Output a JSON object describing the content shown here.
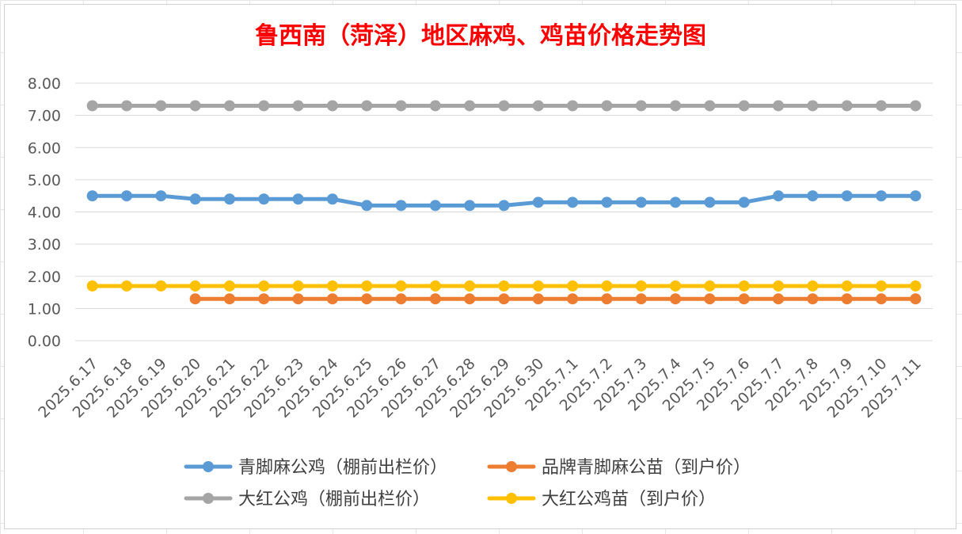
{
  "chart_data": {
    "type": "line",
    "title": "鲁西南（菏泽）地区麻鸡、鸡苗价格走势图",
    "xlabel": "",
    "ylabel": "",
    "ylim": [
      0,
      8
    ],
    "yticks": [
      "0.00",
      "1.00",
      "2.00",
      "3.00",
      "4.00",
      "5.00",
      "6.00",
      "7.00",
      "8.00"
    ],
    "grid": true,
    "legend_position": "bottom",
    "categories": [
      "2025.6.17",
      "2025.6.18",
      "2025.6.19",
      "2025.6.20",
      "2025.6.21",
      "2025.6.22",
      "2025.6.23",
      "2025.6.24",
      "2025.6.25",
      "2025.6.26",
      "2025.6.27",
      "2025.6.28",
      "2025.6.29",
      "2025.6.30",
      "2025.7.1",
      "2025.7.2",
      "2025.7.3",
      "2025.7.4",
      "2025.7.5",
      "2025.7.6",
      "2025.7.7",
      "2025.7.8",
      "2025.7.9",
      "2025.7.10",
      "2025.7.11"
    ],
    "series": [
      {
        "name": "青脚麻公鸡（棚前出栏价）",
        "color": "#5b9bd5",
        "values": [
          4.5,
          4.5,
          4.5,
          4.4,
          4.4,
          4.4,
          4.4,
          4.4,
          4.2,
          4.2,
          4.2,
          4.2,
          4.2,
          4.3,
          4.3,
          4.3,
          4.3,
          4.3,
          4.3,
          4.3,
          4.5,
          4.5,
          4.5,
          4.5,
          4.5
        ]
      },
      {
        "name": "品牌青脚麻公苗（到户价）",
        "color": "#ed7d31",
        "values": [
          null,
          null,
          null,
          1.3,
          1.3,
          1.3,
          1.3,
          1.3,
          1.3,
          1.3,
          1.3,
          1.3,
          1.3,
          1.3,
          1.3,
          1.3,
          1.3,
          1.3,
          1.3,
          1.3,
          1.3,
          1.3,
          1.3,
          1.3,
          1.3
        ]
      },
      {
        "name": "大红公鸡（棚前出栏价）",
        "color": "#a5a5a5",
        "values": [
          7.3,
          7.3,
          7.3,
          7.3,
          7.3,
          7.3,
          7.3,
          7.3,
          7.3,
          7.3,
          7.3,
          7.3,
          7.3,
          7.3,
          7.3,
          7.3,
          7.3,
          7.3,
          7.3,
          7.3,
          7.3,
          7.3,
          7.3,
          7.3,
          7.3
        ]
      },
      {
        "name": "大红公鸡苗（到户价）",
        "color": "#ffc000",
        "values": [
          1.7,
          1.7,
          1.7,
          1.7,
          1.7,
          1.7,
          1.7,
          1.7,
          1.7,
          1.7,
          1.7,
          1.7,
          1.7,
          1.7,
          1.7,
          1.7,
          1.7,
          1.7,
          1.7,
          1.7,
          1.7,
          1.7,
          1.7,
          1.7,
          1.7
        ]
      }
    ]
  }
}
